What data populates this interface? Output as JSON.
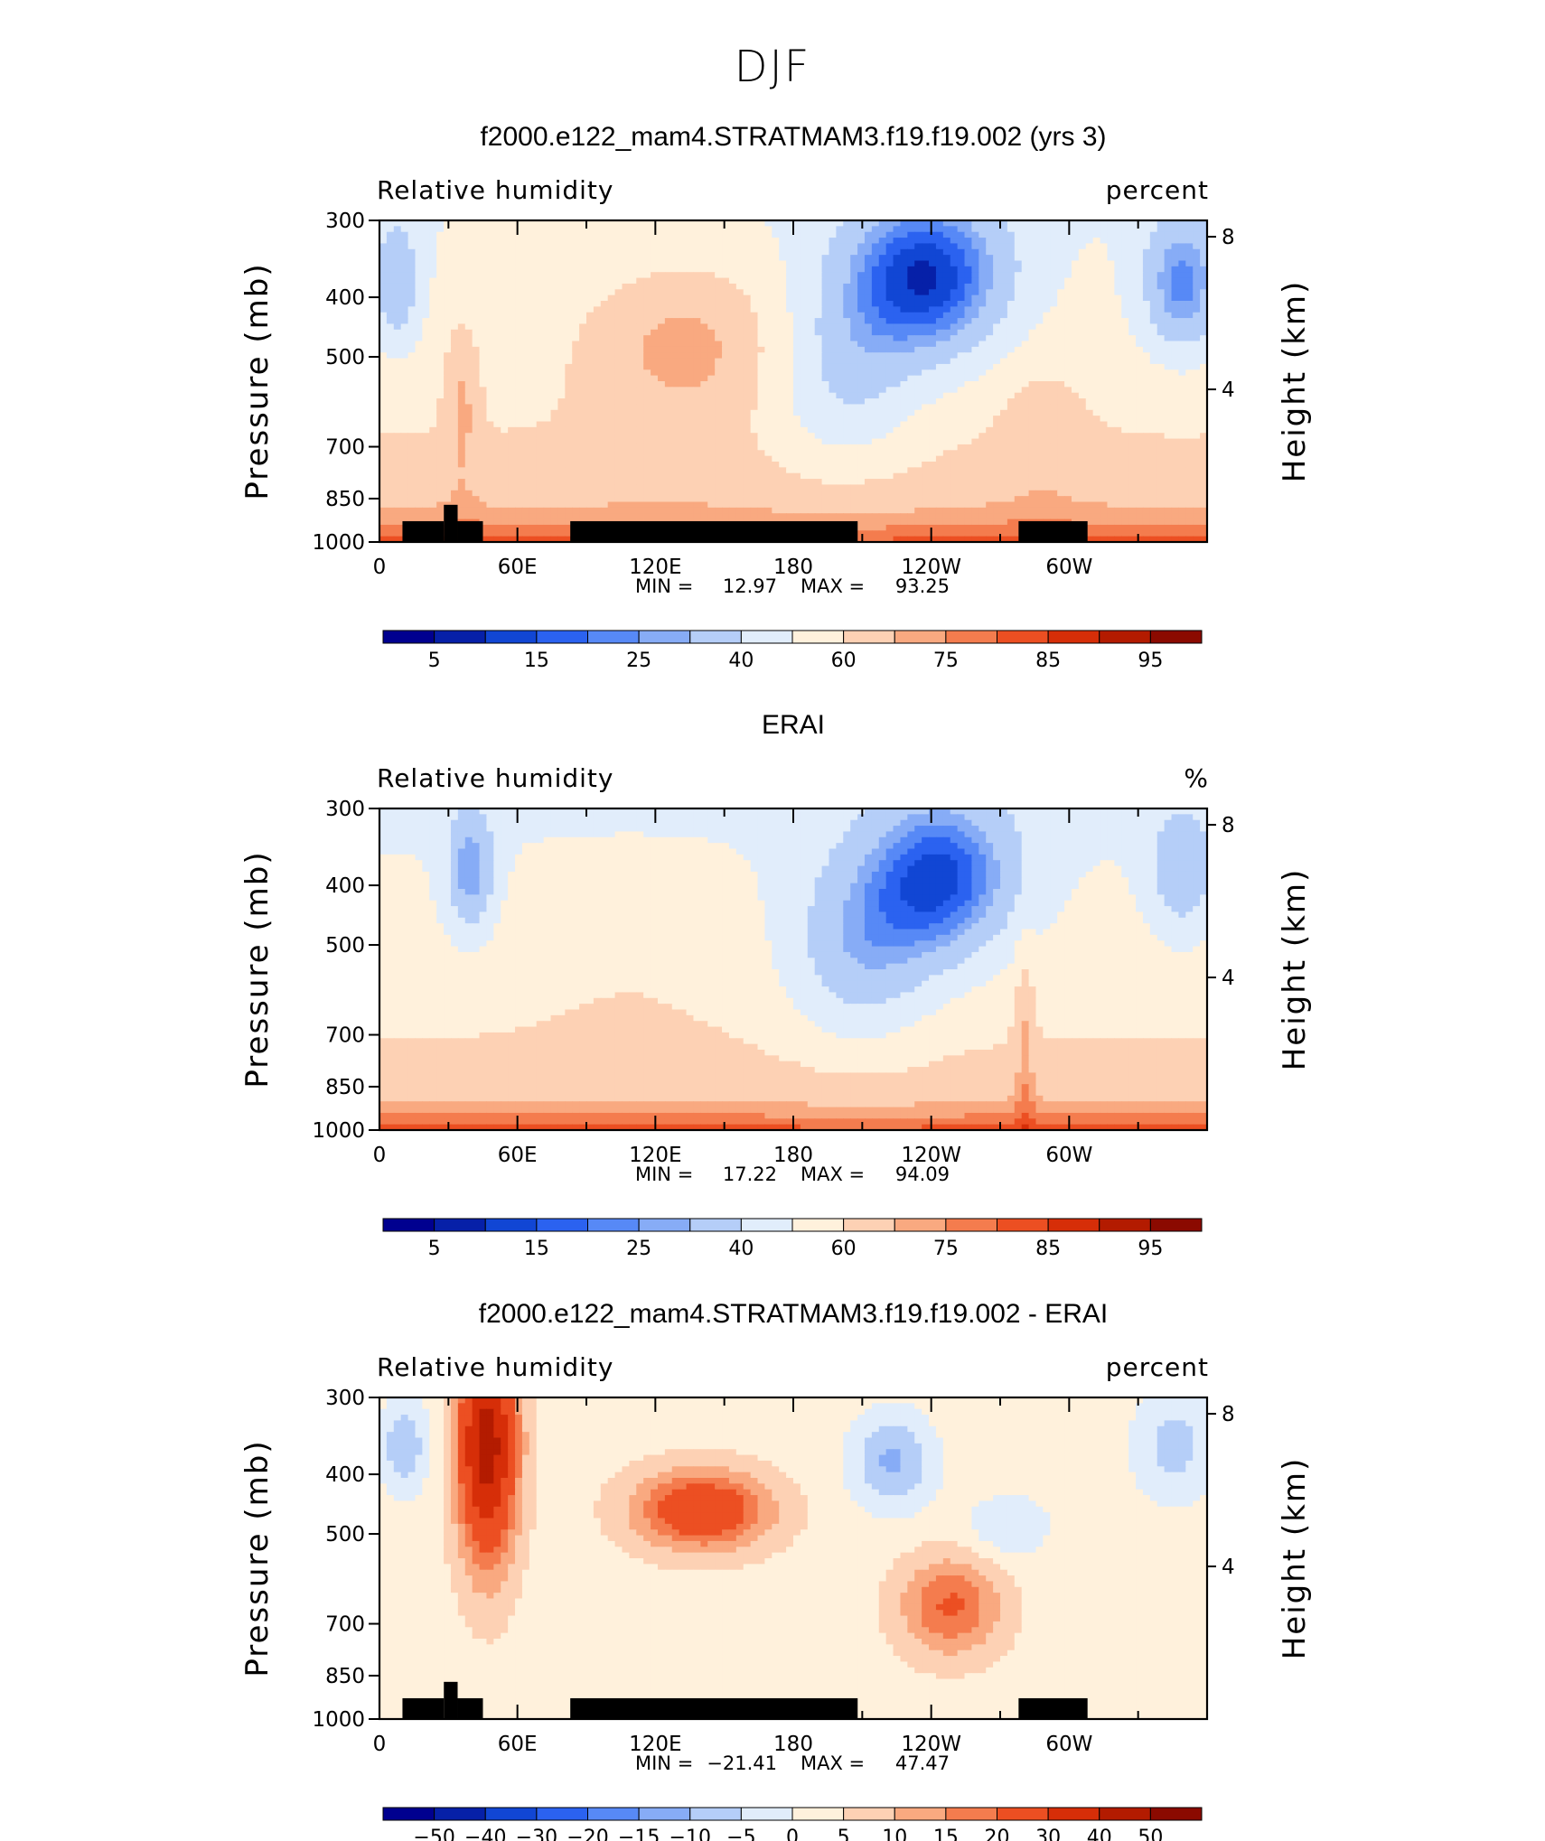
{
  "page": {
    "season_title": "DJF"
  },
  "chart_data": [
    {
      "type": "heatmap",
      "title": "f2000.e122_mam4.STRATMAM3.f19.f19.002 (yrs 3)",
      "left_label": "Relative humidity",
      "right_label": "percent",
      "ylabel": "Pressure (mb)",
      "ylabel_right": "Height (km)",
      "ylim": [
        1000,
        300
      ],
      "y_scale": "log",
      "yticks": [
        "300",
        "400",
        "500",
        "700",
        "850",
        "1000"
      ],
      "yticks_right": [
        "8",
        "4"
      ],
      "xticks": [
        "0",
        "60E",
        "120E",
        "180",
        "120W",
        "60W"
      ],
      "stats": {
        "min_label": "MIN =",
        "min": "12.97",
        "max_label": "MAX =",
        "max": "93.25"
      },
      "colorbar": {
        "labels": [
          "5",
          "15",
          "25",
          "40",
          "60",
          "75",
          "85",
          "95"
        ],
        "colors": [
          "#00008f",
          "#0620a8",
          "#1146d4",
          "#2b62f0",
          "#5789f6",
          "#87acf6",
          "#b5cef8",
          "#e1edfb",
          "#fff1dc",
          "#fdd1b4",
          "#f9a980",
          "#f47c4e",
          "#ec4f22",
          "#d62e08",
          "#b31b00",
          "#8b0a00"
        ]
      },
      "terrain": true
    },
    {
      "type": "heatmap",
      "title": "ERAI",
      "left_label": "Relative humidity",
      "right_label": "%",
      "ylabel": "Pressure (mb)",
      "ylabel_right": "Height (km)",
      "ylim": [
        1000,
        300
      ],
      "y_scale": "log",
      "yticks": [
        "300",
        "400",
        "500",
        "700",
        "850",
        "1000"
      ],
      "yticks_right": [
        "8",
        "4"
      ],
      "xticks": [
        "0",
        "60E",
        "120E",
        "180",
        "120W",
        "60W"
      ],
      "stats": {
        "min_label": "MIN =",
        "min": "17.22",
        "max_label": "MAX =",
        "max": "94.09"
      },
      "colorbar": {
        "labels": [
          "5",
          "15",
          "25",
          "40",
          "60",
          "75",
          "85",
          "95"
        ],
        "colors": [
          "#00008f",
          "#0620a8",
          "#1146d4",
          "#2b62f0",
          "#5789f6",
          "#87acf6",
          "#b5cef8",
          "#e1edfb",
          "#fff1dc",
          "#fdd1b4",
          "#f9a980",
          "#f47c4e",
          "#ec4f22",
          "#d62e08",
          "#b31b00",
          "#8b0a00"
        ]
      },
      "terrain": false
    },
    {
      "type": "heatmap",
      "title": "f2000.e122_mam4.STRATMAM3.f19.f19.002 - ERAI",
      "left_label": "Relative humidity",
      "right_label": "percent",
      "ylabel": "Pressure (mb)",
      "ylabel_right": "Height (km)",
      "ylim": [
        1000,
        300
      ],
      "y_scale": "log",
      "yticks": [
        "300",
        "400",
        "500",
        "700",
        "850",
        "1000"
      ],
      "yticks_right": [
        "8",
        "4"
      ],
      "xticks": [
        "0",
        "60E",
        "120E",
        "180",
        "120W",
        "60W"
      ],
      "stats": {
        "min_label": "MIN =",
        "min": "−21.41",
        "max_label": "MAX =",
        "max": "47.47"
      },
      "colorbar": {
        "labels": [
          "−50",
          "−40",
          "−30",
          "−20",
          "−15",
          "−10",
          "−5",
          "0",
          "5",
          "10",
          "15",
          "20",
          "30",
          "40",
          "50"
        ],
        "colors": [
          "#00008f",
          "#0620a8",
          "#1146d4",
          "#2b62f0",
          "#5789f6",
          "#87acf6",
          "#b5cef8",
          "#e1edfb",
          "#fff1dc",
          "#fdd1b4",
          "#f9a980",
          "#f47c4e",
          "#ec4f22",
          "#d62e08",
          "#b31b00",
          "#8b0a00"
        ]
      },
      "terrain": true
    }
  ]
}
